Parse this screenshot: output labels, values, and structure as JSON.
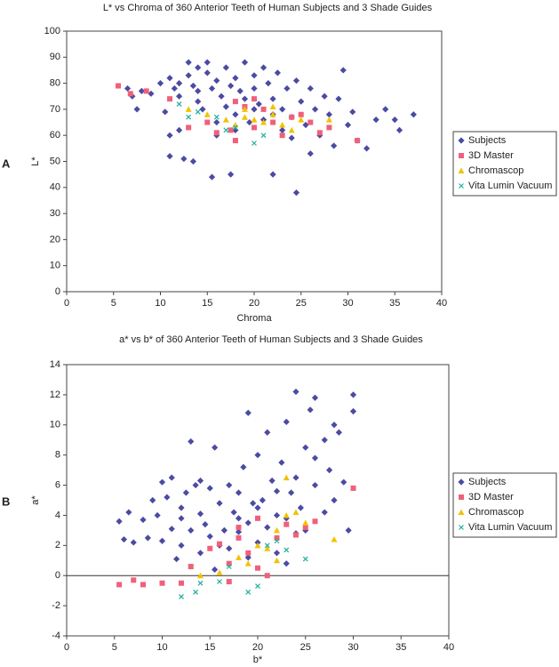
{
  "chart_data": [
    {
      "type": "scatter",
      "panel": "A",
      "title": "L* vs Chroma of 360 Anterior Teeth of Human Subjects and 3 Shade Guides",
      "xlabel": "Chroma",
      "ylabel": "L*",
      "xlim": [
        0,
        40
      ],
      "xticks": [
        0,
        5,
        10,
        15,
        20,
        25,
        30,
        35,
        40
      ],
      "ylim": [
        0,
        100
      ],
      "yticks": [
        0,
        10,
        20,
        30,
        40,
        50,
        60,
        70,
        80,
        90,
        100
      ],
      "legend": "right",
      "series": [
        {
          "name": "Subjects",
          "color": "#4b4ba3",
          "marker": "diamond",
          "x": [
            6.5,
            7,
            7.5,
            8,
            9,
            10,
            10.5,
            11,
            11,
            11.5,
            12,
            12,
            12.5,
            13,
            13,
            13.5,
            13.5,
            14,
            14,
            14.5,
            15,
            15,
            15.5,
            15.5,
            16,
            16,
            16.5,
            17,
            17,
            17.5,
            17.5,
            18,
            18,
            18.5,
            19,
            19,
            19.5,
            20,
            20,
            20.5,
            21,
            21,
            21.5,
            22,
            22,
            22.5,
            23,
            23,
            23.5,
            24,
            24.5,
            24.5,
            25,
            25.5,
            26,
            26.5,
            27,
            27.5,
            28,
            28.5,
            29,
            29.5,
            30,
            30.5,
            31,
            32,
            33,
            34,
            35,
            35.5,
            37,
            16,
            18,
            20,
            22,
            12,
            14,
            24,
            26,
            11
          ],
          "y": [
            78,
            75,
            70,
            77,
            76,
            80,
            69,
            82,
            52,
            78,
            75,
            62,
            51,
            88,
            83,
            50,
            79,
            86,
            73,
            70,
            88,
            84,
            44,
            78,
            81,
            65,
            75,
            86,
            71,
            45,
            79,
            82,
            68,
            77,
            88,
            74,
            65,
            83,
            78,
            72,
            86,
            66,
            80,
            45,
            74,
            84,
            70,
            62,
            78,
            67,
            38,
            81,
            73,
            64,
            78,
            70,
            60,
            75,
            68,
            56,
            74,
            85,
            64,
            69,
            58,
            55,
            66,
            70,
            66,
            62,
            68,
            60,
            62,
            70,
            68,
            80,
            77,
            59,
            53,
            60
          ]
        },
        {
          "name": "3D Master",
          "color": "#f0607a",
          "marker": "square",
          "x": [
            5.5,
            6.8,
            8.5,
            11,
            13,
            15,
            16,
            17.5,
            18,
            19,
            20,
            21,
            22,
            23,
            24,
            25,
            26,
            27,
            28,
            31,
            20,
            18
          ],
          "y": [
            79,
            76,
            77,
            74,
            63,
            65,
            61,
            62,
            58,
            71,
            63,
            70,
            65,
            60,
            67,
            68,
            65,
            61,
            63,
            58,
            74,
            73
          ]
        },
        {
          "name": "Chromascop",
          "color": "#f2c200",
          "marker": "triangle",
          "x": [
            13,
            15,
            17,
            18,
            19,
            20,
            21,
            22,
            23,
            24,
            25,
            28,
            19,
            22
          ],
          "y": [
            70,
            68,
            66,
            64,
            67,
            66,
            65,
            68,
            64,
            62,
            66,
            66,
            70,
            71
          ]
        },
        {
          "name": "Vita Lumin Vacuum",
          "color": "#1fae9e",
          "marker": "x",
          "x": [
            13,
            14,
            16,
            17,
            18,
            20,
            21,
            12
          ],
          "y": [
            67,
            69,
            67,
            62,
            63,
            57,
            60,
            72
          ]
        }
      ]
    },
    {
      "type": "scatter",
      "panel": "B",
      "title": "a* vs b* of 360 Anterior Teeth of Human Subjects and 3 Shade Guides",
      "xlabel": "b*",
      "ylabel": "a*",
      "xlim": [
        0,
        40
      ],
      "xticks": [
        0,
        5,
        10,
        15,
        20,
        25,
        30,
        35,
        40
      ],
      "ylim": [
        -4,
        14
      ],
      "yticks": [
        -4,
        -2,
        0,
        2,
        4,
        6,
        8,
        10,
        12,
        14
      ],
      "hline": 0,
      "legend": "right",
      "series": [
        {
          "name": "Subjects",
          "color": "#4b4ba3",
          "marker": "diamond",
          "x": [
            5.5,
            6,
            6.5,
            7,
            8,
            8.5,
            9,
            9.5,
            10,
            10,
            10.5,
            11,
            11,
            11.5,
            12,
            12,
            12.5,
            13,
            13,
            13.5,
            14,
            14,
            14.5,
            15,
            15,
            15.5,
            15.5,
            16,
            16.5,
            17,
            17,
            17.5,
            18,
            18,
            18.5,
            19,
            19,
            19.5,
            20,
            20,
            20.5,
            21,
            21,
            21.5,
            22,
            22,
            22.5,
            23,
            23,
            23.5,
            24,
            24,
            24.5,
            25,
            25,
            25.5,
            26,
            26,
            27,
            27,
            27.5,
            28,
            28,
            28.5,
            29,
            29.5,
            30,
            30,
            16,
            18,
            20,
            22,
            24,
            14,
            12,
            19,
            23,
            26
          ],
          "y": [
            3.6,
            2.4,
            4.2,
            2.2,
            3.7,
            2.5,
            5,
            4,
            6.2,
            2.3,
            5.2,
            6.5,
            3.1,
            1.1,
            4.5,
            2,
            5.5,
            8.9,
            3,
            6,
            4.1,
            1.5,
            3.4,
            5.8,
            2.6,
            8.5,
            0.4,
            4.8,
            3,
            6,
            1.8,
            4.2,
            5.5,
            2.9,
            7.2,
            10.8,
            3.5,
            4.8,
            8,
            2.2,
            5,
            9.5,
            3.2,
            6.3,
            4,
            1.5,
            7.5,
            10.2,
            3.8,
            5.5,
            12.2,
            6.5,
            4.5,
            8.5,
            3,
            11,
            11.8,
            6,
            9,
            4.2,
            7,
            10,
            5,
            9.5,
            6.2,
            3,
            12,
            10.9,
            2,
            3.8,
            4.5,
            5.6,
            2.8,
            6.3,
            3.8,
            1.2,
            0.8,
            7.8
          ]
        },
        {
          "name": "3D Master",
          "color": "#f0607a",
          "marker": "square",
          "x": [
            5.5,
            7,
            8,
            10,
            12,
            13,
            15,
            16,
            17,
            18,
            19,
            20,
            21,
            22,
            23,
            24,
            25,
            26,
            30,
            18,
            20,
            17
          ],
          "y": [
            -0.6,
            -0.3,
            -0.6,
            -0.5,
            -0.5,
            0.6,
            1.8,
            2.1,
            -0.4,
            2.5,
            1.5,
            0.5,
            0,
            2.5,
            3.4,
            2.7,
            3.2,
            3.6,
            5.8,
            3.2,
            3.8,
            0.8
          ]
        },
        {
          "name": "Chromascop",
          "color": "#f2c200",
          "marker": "triangle",
          "x": [
            14,
            16,
            18,
            19,
            20,
            21,
            22,
            23,
            24,
            25,
            28,
            22,
            23
          ],
          "y": [
            0,
            0.2,
            1.2,
            0.8,
            2,
            1.8,
            3,
            4,
            4.2,
            3.5,
            2.4,
            1,
            6.5
          ]
        },
        {
          "name": "Vita Lumin Vacuum",
          "color": "#1fae9e",
          "marker": "x",
          "x": [
            12,
            13.5,
            14,
            16,
            17,
            19,
            20,
            21,
            22,
            25,
            23
          ],
          "y": [
            -1.4,
            -1.1,
            -0.5,
            -0.4,
            0.6,
            -1.1,
            -0.7,
            2,
            2.3,
            1.1,
            1.7
          ]
        }
      ]
    }
  ]
}
